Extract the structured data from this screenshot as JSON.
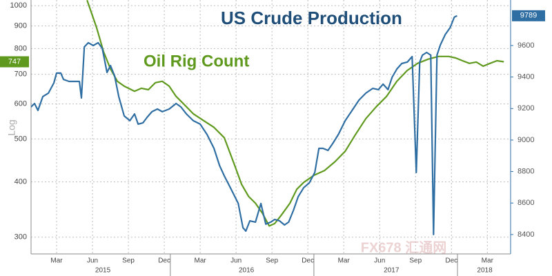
{
  "chart_data": {
    "type": "line",
    "y_label": "Log",
    "log_scale": true,
    "grid": true,
    "watermark": "FX678 汇通网",
    "xlim": [
      2015.03,
      2018.37
    ],
    "ylim": [
      275,
      1030
    ],
    "yticks": [
      300,
      400,
      500,
      600,
      700,
      800,
      900,
      1000
    ],
    "y2lim": [
      8277,
      9889
    ],
    "y2ticks": [
      8400,
      8600,
      8800,
      9000,
      9200,
      9400,
      9600
    ],
    "xticks": [
      {
        "value": 2015.208,
        "label": "Mar"
      },
      {
        "value": 2015.458,
        "label": "Jun"
      },
      {
        "value": 2015.708,
        "label": "Sep"
      },
      {
        "value": 2015.958,
        "label": "Dec"
      },
      {
        "value": 2016.208,
        "label": "Mar"
      },
      {
        "value": 2016.458,
        "label": "Jun"
      },
      {
        "value": 2016.708,
        "label": "Sep"
      },
      {
        "value": 2016.958,
        "label": "Dec"
      },
      {
        "value": 2017.208,
        "label": "Mar"
      },
      {
        "value": 2017.458,
        "label": "Jun"
      },
      {
        "value": 2017.708,
        "label": "Sep"
      },
      {
        "value": 2017.958,
        "label": "Dec"
      },
      {
        "value": 2018.208,
        "label": "Mar"
      }
    ],
    "year_ticks": [
      {
        "value": 2015.53,
        "label": "2015"
      },
      {
        "value": 2016.53,
        "label": "2016"
      },
      {
        "value": 2017.54,
        "label": "2017"
      },
      {
        "value": 2018.19,
        "label": "2018"
      }
    ],
    "series": [
      {
        "name": "Oil Rig Count",
        "color": "#5f9a1e",
        "axis": "y",
        "last_value": 747,
        "x": [
          2015.42,
          2015.487,
          2015.535,
          2015.583,
          2015.631,
          2015.679,
          2015.751,
          2015.799,
          2015.847,
          2015.896,
          2015.944,
          2015.992,
          2016.04,
          2016.088,
          2016.16,
          2016.232,
          2016.304,
          2016.376,
          2016.448,
          2016.496,
          2016.545,
          2016.593,
          2016.641,
          2016.689,
          2016.727,
          2016.775,
          2016.833,
          2016.881,
          2016.929,
          2017.001,
          2017.073,
          2017.146,
          2017.218,
          2017.29,
          2017.362,
          2017.434,
          2017.506,
          2017.578,
          2017.65,
          2017.722,
          2017.795,
          2017.867,
          2017.939,
          2017.987,
          2018.035,
          2018.083,
          2018.131,
          2018.179,
          2018.227,
          2018.275,
          2018.323
        ],
        "values": [
          1029,
          891,
          787,
          720,
          675,
          658,
          641,
          651,
          646,
          670,
          675,
          658,
          624,
          602,
          570,
          550,
          531,
          503,
          436,
          395,
          371,
          358,
          340,
          318,
          322,
          337,
          358,
          385,
          399,
          414,
          424,
          444,
          469,
          512,
          556,
          591,
          624,
          675,
          714,
          741,
          757,
          768,
          768,
          762,
          751,
          741,
          746,
          730,
          741,
          751,
          747
        ]
      },
      {
        "name": "US Crude Production",
        "color": "#2f6ea3",
        "axis": "y2",
        "last_value": 9789,
        "x": [
          2015.03,
          2015.054,
          2015.078,
          2015.112,
          2015.151,
          2015.189,
          2015.208,
          2015.237,
          2015.256,
          2015.295,
          2015.333,
          2015.367,
          2015.381,
          2015.401,
          2015.429,
          2015.463,
          2015.497,
          2015.526,
          2015.559,
          2015.583,
          2015.612,
          2015.641,
          2015.679,
          2015.718,
          2015.751,
          2015.776,
          2015.809,
          2015.838,
          2015.872,
          2015.91,
          2015.944,
          2015.992,
          2016.04,
          2016.074,
          2016.112,
          2016.16,
          2016.208,
          2016.256,
          2016.304,
          2016.343,
          2016.376,
          2016.425,
          2016.473,
          2016.506,
          2016.526,
          2016.554,
          2016.593,
          2016.631,
          2016.665,
          2016.699,
          2016.727,
          2016.761,
          2016.795,
          2016.824,
          2016.857,
          2016.891,
          2016.929,
          2016.968,
          2017.006,
          2017.035,
          2017.064,
          2017.098,
          2017.131,
          2017.17,
          2017.218,
          2017.266,
          2017.314,
          2017.362,
          2017.41,
          2017.449,
          2017.482,
          2017.516,
          2017.545,
          2017.578,
          2017.612,
          2017.651,
          2017.684,
          2017.713,
          2017.737,
          2017.756,
          2017.785,
          2017.814,
          2017.833,
          2017.857,
          2017.881,
          2017.915,
          2017.949,
          2017.978,
          2017.997
        ],
        "values": [
          9210,
          9232,
          9188,
          9276,
          9298,
          9363,
          9425,
          9425,
          9385,
          9372,
          9372,
          9372,
          9267,
          9591,
          9618,
          9600,
          9618,
          9582,
          9429,
          9473,
          9407,
          9276,
          9153,
          9123,
          9166,
          9101,
          9109,
          9144,
          9180,
          9197,
          9180,
          9197,
          9232,
          9210,
          9166,
          9123,
          9101,
          9035,
          8947,
          8838,
          8772,
          8685,
          8597,
          8444,
          8422,
          8487,
          8479,
          8597,
          8466,
          8479,
          8496,
          8487,
          8461,
          8479,
          8553,
          8641,
          8698,
          8728,
          8794,
          8947,
          8947,
          8934,
          8978,
          9035,
          9123,
          9188,
          9254,
          9298,
          9328,
          9320,
          9355,
          9320,
          9399,
          9451,
          9486,
          9495,
          9530,
          8794,
          9495,
          9539,
          9556,
          9539,
          8400,
          9539,
          9604,
          9670,
          9714,
          9780,
          9789
        ]
      }
    ]
  }
}
